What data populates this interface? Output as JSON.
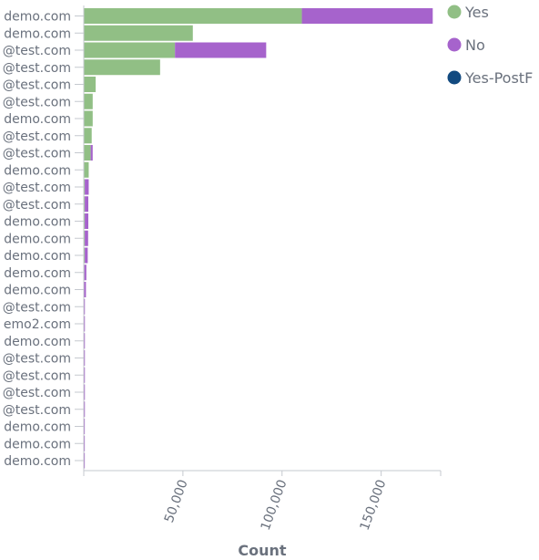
{
  "chart_data": {
    "type": "bar",
    "orientation": "horizontal",
    "stacked": true,
    "xlabel": "Count",
    "xlim": [
      0,
      180000
    ],
    "xticks": [
      50000,
      100000,
      150000
    ],
    "xtick_labels": [
      "50,000",
      "100,000",
      "150,000"
    ],
    "legend_placement": "top-right",
    "categories": [
      "demo.com",
      "demo.com",
      "@test.com",
      "@test.com",
      "@test.com",
      "@test.com",
      "demo.com",
      "@test.com",
      "@test.com",
      "demo.com",
      "@test.com",
      "@test.com",
      "demo.com",
      "demo.com",
      "demo.com",
      "demo.com",
      "demo.com",
      "@test.com",
      "emo2.com",
      "demo.com",
      "@test.com",
      "@test.com",
      "@test.com",
      "@test.com",
      "demo.com",
      "demo.com",
      "demo.com"
    ],
    "series": [
      {
        "name": "Yes",
        "color": "#91bf85",
        "values": [
          110000,
          55000,
          46000,
          38500,
          6000,
          4500,
          4500,
          4000,
          3500,
          2500,
          500,
          500,
          500,
          500,
          500,
          300,
          200,
          200,
          200,
          200,
          200,
          200,
          200,
          200,
          150,
          150,
          150
        ]
      },
      {
        "name": "No",
        "color": "#a663cc",
        "values": [
          66000,
          0,
          46000,
          0,
          0,
          0,
          0,
          0,
          1000,
          0,
          2000,
          1800,
          1800,
          1700,
          1500,
          1000,
          900,
          300,
          300,
          200,
          200,
          200,
          200,
          150,
          100,
          100,
          100
        ]
      },
      {
        "name": "Yes-PostF",
        "color": "#124a80",
        "values": [
          0,
          0,
          0,
          0,
          0,
          0,
          0,
          0,
          0,
          0,
          0,
          0,
          0,
          0,
          0,
          0,
          0,
          0,
          0,
          0,
          0,
          0,
          0,
          0,
          0,
          0,
          0
        ]
      }
    ]
  }
}
